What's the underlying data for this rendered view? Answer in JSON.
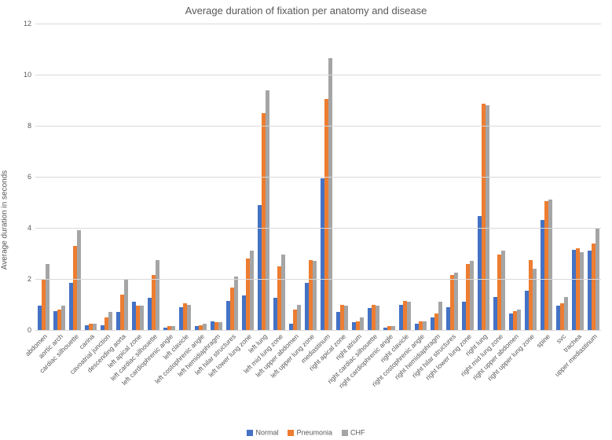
{
  "chart": {
    "type": "bar",
    "title": "Average duration of fixation per anatomy and disease",
    "title_fontsize": 13,
    "ylabel": "Average duration in seconds",
    "label_fontsize": 10,
    "ylim": [
      0,
      12
    ],
    "ytick_step": 2,
    "background_color": "#ffffff",
    "grid_color": "#d9d9d9",
    "text_color": "#595959",
    "x_tick_rotation": -45,
    "bar_group_gap": 0.25,
    "series": [
      {
        "name": "Normal",
        "color": "#4472c4"
      },
      {
        "name": "Pneumonia",
        "color": "#ed7d31"
      },
      {
        "name": "CHF",
        "color": "#a5a5a5"
      }
    ],
    "categories": [
      "abdomen",
      "aortic arch",
      "cardiac silhouette",
      "carina",
      "cavoatrial junction",
      "descending aorta",
      "left apical zone",
      "left cardiac silhouette",
      "left cardiophrenic angle",
      "left clavicle",
      "left costophrenic angle",
      "left hemidiaphragm",
      "left hilar structures",
      "left lower lung zone",
      "left lung",
      "left mid lung zone",
      "left upper abdomen",
      "left upper lung zone",
      "mediastinum",
      "right apical zone",
      "right atrium",
      "right cardiac silhouette",
      "right cardiophrenic angle",
      "right clavicle",
      "right costophrenic angle",
      "right hemidiaphragm",
      "right hilar structures",
      "right lower lung zone",
      "right lung",
      "right mid lung zone",
      "right upper abdomen",
      "right upper lung zone",
      "spine",
      "svc",
      "trachea",
      "upper mediastinum"
    ],
    "values": {
      "Normal": [
        0.95,
        0.75,
        1.85,
        0.2,
        0.2,
        0.7,
        1.1,
        1.25,
        0.1,
        0.9,
        0.15,
        0.35,
        1.15,
        1.35,
        4.9,
        1.25,
        0.25,
        1.85,
        5.95,
        0.7,
        0.3,
        0.85,
        0.1,
        1.0,
        0.25,
        0.5,
        0.9,
        1.1,
        4.45,
        1.3,
        0.65,
        1.55,
        4.3,
        0.95,
        3.15,
        3.1
      ],
      "Pneumonia": [
        2.0,
        0.8,
        3.3,
        0.25,
        0.5,
        1.4,
        0.95,
        2.15,
        0.15,
        1.05,
        0.2,
        0.3,
        1.65,
        2.8,
        8.5,
        2.5,
        0.8,
        2.75,
        9.05,
        1.0,
        0.35,
        1.0,
        0.15,
        1.15,
        0.35,
        0.65,
        2.15,
        2.6,
        8.85,
        2.95,
        0.75,
        2.75,
        5.05,
        1.05,
        3.2,
        3.4
      ],
      "CHF": [
        2.6,
        0.95,
        3.9,
        0.25,
        0.7,
        2.0,
        0.95,
        2.75,
        0.15,
        1.0,
        0.25,
        0.3,
        2.1,
        3.1,
        9.4,
        2.95,
        1.0,
        2.7,
        10.65,
        0.95,
        0.5,
        0.95,
        0.15,
        1.1,
        0.35,
        1.1,
        2.25,
        2.7,
        8.8,
        3.1,
        0.8,
        2.4,
        5.1,
        1.3,
        3.05,
        4.0
      ]
    },
    "legend_position": "bottom"
  }
}
